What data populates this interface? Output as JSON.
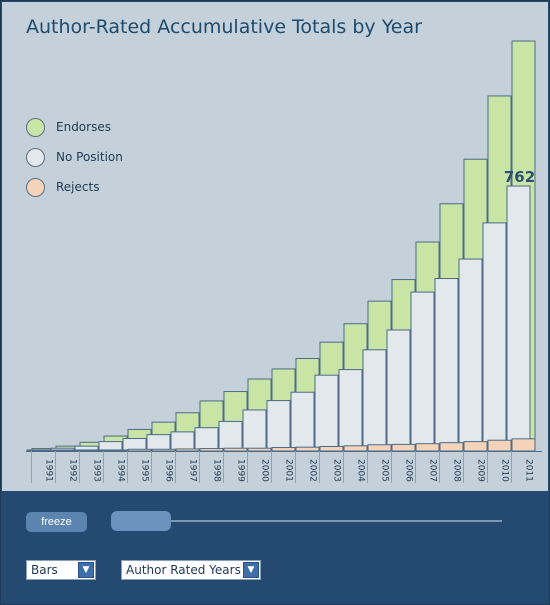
{
  "chart_data": {
    "type": "bar",
    "title": "Author-Rated Accumulative Totals by Year",
    "categories": [
      "1991",
      "1992",
      "1993",
      "1994",
      "1995",
      "1996",
      "1997",
      "1998",
      "1999",
      "2000",
      "2001",
      "2002",
      "2003",
      "2004",
      "2005",
      "2006",
      "2007",
      "2008",
      "2009",
      "2010",
      "2011"
    ],
    "series": [
      {
        "name": "Endorses",
        "values": [
          7,
          14,
          25,
          43,
          62,
          83,
          110,
          144,
          171,
          207,
          236,
          266,
          313,
          366,
          431,
          493,
          601,
          711,
          839,
          1021,
          1179
        ]
      },
      {
        "name": "No Position",
        "values": [
          3,
          8,
          14,
          27,
          36,
          47,
          55,
          67,
          85,
          118,
          145,
          169,
          218,
          234,
          291,
          348,
          457,
          496,
          552,
          656,
          762
        ]
      },
      {
        "name": "Rejects",
        "values": [
          1,
          2,
          3,
          3,
          5,
          5,
          6,
          7,
          8,
          8,
          10,
          11,
          13,
          15,
          18,
          19,
          21,
          24,
          27,
          31,
          35
        ]
      }
    ],
    "colors": {
      "Endorses": "#c8e5a6",
      "No Position": "#e2e8eb",
      "Rejects": "#f5d3b8"
    },
    "ylim": [
      0,
      1179
    ],
    "annotation": {
      "category": "2011",
      "series": "No Position",
      "text": "762"
    },
    "legend_position": "top-left",
    "grid": false
  },
  "legend": [
    {
      "label": "Endorses",
      "color": "#c8e5a6"
    },
    {
      "label": "No Position",
      "color": "#e2e8eb"
    },
    {
      "label": "Rejects",
      "color": "#f5d3b8"
    }
  ],
  "controls": {
    "freeze_label": "freeze",
    "view_select": "Bars",
    "mode_select": "Author Rated Years"
  }
}
